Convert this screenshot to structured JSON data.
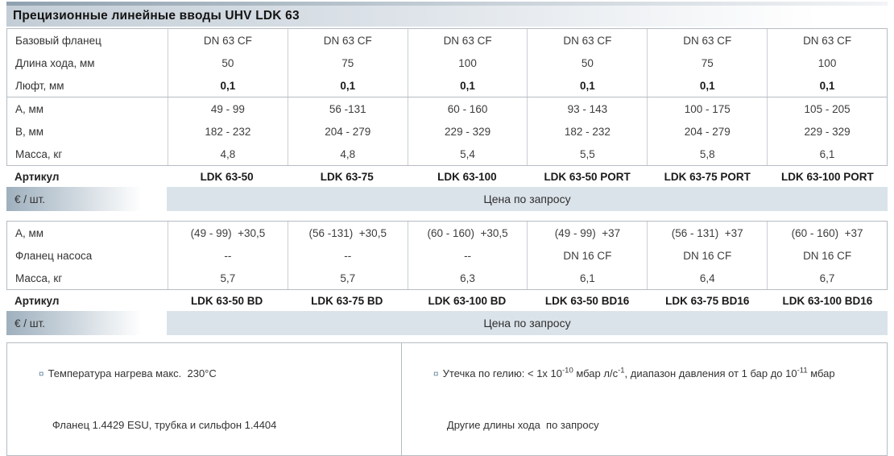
{
  "title": "Прецизионные линейные вводы UHV LDK 63",
  "block1": {
    "rows": [
      {
        "label": "Базовый фланец",
        "values": [
          "DN 63 CF",
          "DN 63 CF",
          "DN 63 CF",
          "DN 63 CF",
          "DN 63 CF",
          "DN 63 CF"
        ]
      },
      {
        "label": "Длина хода, мм",
        "values": [
          "50",
          "75",
          "100",
          "50",
          "75",
          "100"
        ]
      },
      {
        "label": "Люфт, мм",
        "values": [
          "0,1",
          "0,1",
          "0,1",
          "0,1",
          "0,1",
          "0,1"
        ]
      },
      {
        "label": "А, мм",
        "values": [
          "49 - 99",
          "56 -131",
          "60 - 160",
          "93 - 143",
          "100 - 175",
          "105 - 205"
        ]
      },
      {
        "label": "В, мм",
        "values": [
          "182 - 232",
          "204 - 279",
          "229 - 329",
          "182 - 232",
          "204 - 279",
          "229 - 329"
        ]
      },
      {
        "label": "Масса, кг",
        "values": [
          "4,8",
          "4,8",
          "5,4",
          "5,5",
          "5,8",
          "6,1"
        ]
      }
    ],
    "article": {
      "label": "Артикул",
      "values": [
        "LDK 63-50",
        "LDK 63-75",
        "LDK 63-100",
        "LDK 63-50 PORT",
        "LDK 63-75 PORT",
        "LDK 63-100 PORT"
      ]
    },
    "price": {
      "label": "€ / шт.",
      "value": "Цена по запросу"
    }
  },
  "block2": {
    "rows": [
      {
        "label": "А, мм",
        "values": [
          "(49 - 99)  +30,5",
          "(56 -131)  +30,5",
          "(60 - 160)  +30,5",
          "(49 - 99)  +37",
          "(56 - 131)  +37",
          "(60 - 160)  +37"
        ]
      },
      {
        "label": "Фланец насоса",
        "values": [
          "--",
          "--",
          "--",
          "DN 16 CF",
          "DN 16 CF",
          "DN 16 CF"
        ]
      },
      {
        "label": "Масса, кг",
        "values": [
          "5,7",
          "5,7",
          "6,3",
          "6,1",
          "6,4",
          "6,7"
        ]
      }
    ],
    "article": {
      "label": "Артикул",
      "values": [
        "LDK 63-50 BD",
        "LDK 63-75 BD",
        "LDK 63-100 BD",
        "LDK 63-50 BD16",
        "LDK 63-75 BD16",
        "LDK 63-100 BD16"
      ]
    },
    "price": {
      "label": "€ / шт.",
      "value": "Цена по запросу"
    }
  },
  "footnotes": {
    "bullet": "¤",
    "left_line1": "Температура нагрева макс.  230°C",
    "left_line2": "Фланец 1.4429 ESU, трубка и сильфон 1.4404",
    "right_line1": {
      "p1": "Утечка по гелию: < 1x 10",
      "s1": "-10",
      "p2": " мбар л/с",
      "s2": "-1",
      "p3": ", диапазон давления от 1 бар до 10",
      "s3": "-11",
      "p4": " мбар"
    },
    "right_line2": "Другие длины хода  по запросу"
  },
  "colors": {
    "accent_strip": "#8fa1af",
    "title_band_left": "#c3cdd6",
    "price_band": "#dbe3ea",
    "label_gradient_left": "#9fb0be",
    "border": "#b4bcc2",
    "bullet": "#6d8ba1"
  }
}
